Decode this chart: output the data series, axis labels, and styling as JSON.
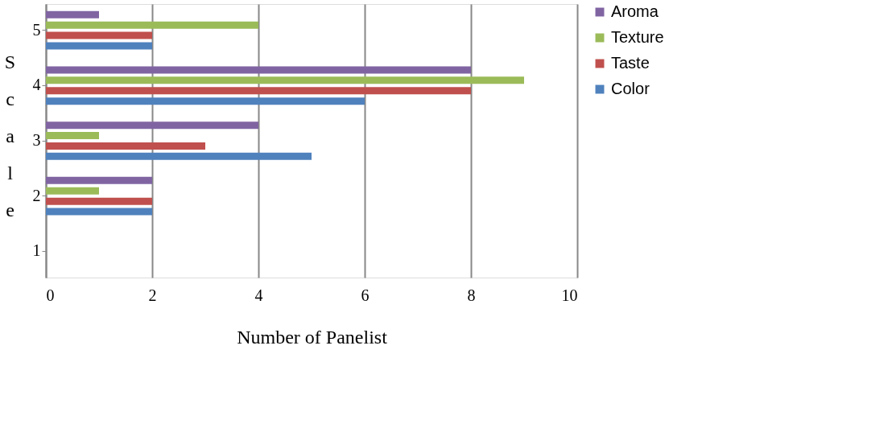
{
  "chart_data": {
    "type": "bar",
    "orientation": "horizontal",
    "xlabel": "Number of Panelist",
    "ylabel": "Scale",
    "categories": [
      "5",
      "4",
      "3",
      "2",
      "1"
    ],
    "series": [
      {
        "name": "Color",
        "color": "#4f81bd",
        "values": [
          2,
          6,
          5,
          2,
          0
        ]
      },
      {
        "name": "Taste",
        "color": "#c0504d",
        "values": [
          2,
          8,
          3,
          2,
          0
        ]
      },
      {
        "name": "Texture",
        "color": "#9bbb59",
        "values": [
          4,
          9,
          1,
          1,
          0
        ]
      },
      {
        "name": "Aroma",
        "color": "#8064a2",
        "values": [
          1,
          8,
          4,
          2,
          0
        ]
      }
    ],
    "xlim": [
      0,
      10
    ],
    "xticks": [
      0,
      2,
      4,
      6,
      8,
      10
    ],
    "grid": "x",
    "legend": "right"
  }
}
